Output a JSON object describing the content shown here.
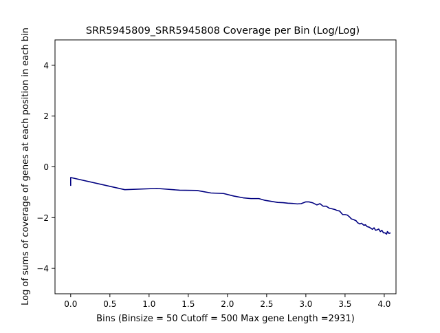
{
  "chart_data": {
    "type": "line",
    "title": "SRR5945809_SRR5945808 Coverage per Bin (Log/Log)",
    "xlabel": "Bins  (Binsize = 50 Cutoff = 500 Max gene Length =2931)",
    "ylabel": "Log of sums of coverage of genes at each position in each bin",
    "xlim": [
      -0.2,
      4.15
    ],
    "ylim": [
      -5,
      5
    ],
    "xticks": [
      0.0,
      0.5,
      1.0,
      1.5,
      2.0,
      2.5,
      3.0,
      3.5,
      4.0
    ],
    "xtick_labels": [
      "0.0",
      "0.5",
      "1.0",
      "1.5",
      "2.0",
      "2.5",
      "3.0",
      "3.5",
      "4.0"
    ],
    "yticks": [
      -4,
      -2,
      0,
      2,
      4
    ],
    "ytick_labels": [
      "−4",
      "−2",
      "0",
      "2",
      "4"
    ],
    "grid": false,
    "line_color": "#000080",
    "series": [
      {
        "x": [
          0.0,
          0.0,
          0.69,
          1.1,
          1.39,
          1.61,
          1.79,
          1.95,
          2.08,
          2.2,
          2.3,
          2.4,
          2.48,
          2.56,
          2.64,
          2.71,
          2.77,
          2.83,
          2.89,
          2.94,
          3.0,
          3.04,
          3.09,
          3.14,
          3.18,
          3.22,
          3.26,
          3.3,
          3.33,
          3.37,
          3.4,
          3.43,
          3.47,
          3.5,
          3.53,
          3.56,
          3.58,
          3.61,
          3.64,
          3.66,
          3.69,
          3.71,
          3.74,
          3.76,
          3.78,
          3.81,
          3.83,
          3.85,
          3.87,
          3.89,
          3.91,
          3.93,
          3.95,
          3.97,
          3.99,
          4.01,
          4.03,
          4.04,
          4.06,
          4.08
        ],
        "y": [
          -0.75,
          -0.42,
          -0.9,
          -0.85,
          -0.92,
          -0.93,
          -1.03,
          -1.05,
          -1.15,
          -1.22,
          -1.25,
          -1.25,
          -1.32,
          -1.36,
          -1.4,
          -1.41,
          -1.43,
          -1.44,
          -1.46,
          -1.45,
          -1.38,
          -1.38,
          -1.42,
          -1.5,
          -1.45,
          -1.55,
          -1.55,
          -1.63,
          -1.65,
          -1.68,
          -1.72,
          -1.74,
          -1.88,
          -1.88,
          -1.9,
          -1.98,
          -2.05,
          -2.08,
          -2.12,
          -2.2,
          -2.25,
          -2.22,
          -2.3,
          -2.28,
          -2.35,
          -2.38,
          -2.42,
          -2.46,
          -2.4,
          -2.5,
          -2.48,
          -2.45,
          -2.55,
          -2.5,
          -2.6,
          -2.6,
          -2.65,
          -2.55,
          -2.62,
          -2.6
        ]
      }
    ]
  }
}
